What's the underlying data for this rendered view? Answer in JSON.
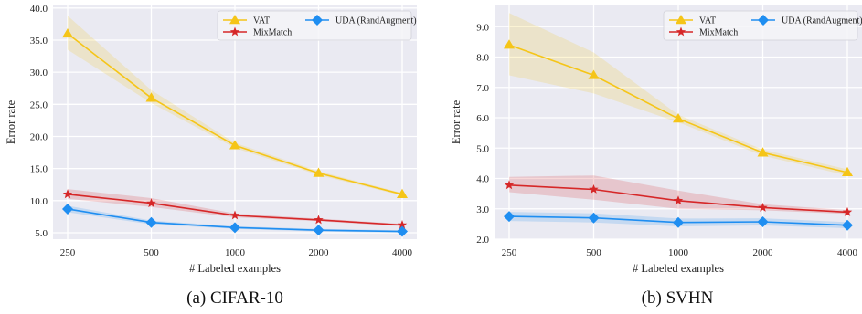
{
  "chart_data": [
    {
      "type": "line",
      "caption": "(a) CIFAR-10",
      "xlabel": "# Labeled examples",
      "ylabel": "Error rate",
      "x": [
        250,
        500,
        1000,
        2000,
        4000
      ],
      "x_tick_labels": [
        "250",
        "500",
        "1000",
        "2000",
        "4000"
      ],
      "x_scale": "log",
      "ylim": [
        4.0,
        40.4
      ],
      "y_ticks": [
        5.0,
        10.0,
        15.0,
        20.0,
        25.0,
        30.0,
        35.0,
        40.0
      ],
      "y_tick_labels": [
        "5.0",
        "10.0",
        "15.0",
        "20.0",
        "25.0",
        "30.0",
        "35.0",
        "40.0"
      ],
      "grid": true,
      "legend_position": "top-right",
      "series": [
        {
          "name": "VAT",
          "color": "#f5c518",
          "marker": "triangle",
          "values": [
            36.0,
            26.0,
            18.6,
            14.3,
            11.0
          ],
          "lower": [
            33.5,
            25.2,
            18.2,
            14.0,
            10.8
          ],
          "upper": [
            38.8,
            27.2,
            19.0,
            14.6,
            11.2
          ]
        },
        {
          "name": "MixMatch",
          "color": "#d62728",
          "marker": "star",
          "values": [
            11.0,
            9.6,
            7.7,
            7.0,
            6.2
          ],
          "lower": [
            10.3,
            9.0,
            7.4,
            6.8,
            6.0
          ],
          "upper": [
            11.8,
            10.4,
            8.0,
            7.2,
            6.4
          ]
        },
        {
          "name": "UDA (RandAugment)",
          "color": "#1f8ef1",
          "marker": "diamond",
          "values": [
            8.7,
            6.6,
            5.8,
            5.4,
            5.2
          ],
          "lower": [
            8.2,
            6.3,
            5.6,
            5.2,
            5.0
          ],
          "upper": [
            9.2,
            6.9,
            6.0,
            5.6,
            5.4
          ]
        }
      ]
    },
    {
      "type": "line",
      "caption": "(b) SVHN",
      "xlabel": "# Labeled examples",
      "ylabel": "Error rate",
      "x": [
        250,
        500,
        1000,
        2000,
        4000
      ],
      "x_tick_labels": [
        "250",
        "500",
        "1000",
        "2000",
        "4000"
      ],
      "x_scale": "log",
      "ylim": [
        2.0,
        9.7
      ],
      "y_ticks": [
        2.0,
        3.0,
        4.0,
        5.0,
        6.0,
        7.0,
        8.0,
        9.0
      ],
      "y_tick_labels": [
        "2.0",
        "3.0",
        "4.0",
        "5.0",
        "6.0",
        "7.0",
        "8.0",
        "9.0"
      ],
      "grid": true,
      "legend_position": "top-right",
      "series": [
        {
          "name": "VAT",
          "color": "#f5c518",
          "marker": "triangle",
          "values": [
            8.4,
            7.4,
            5.97,
            4.85,
            4.2
          ],
          "lower": [
            7.4,
            6.8,
            5.85,
            4.75,
            4.1
          ],
          "upper": [
            9.45,
            8.15,
            6.1,
            4.95,
            4.3
          ]
        },
        {
          "name": "MixMatch",
          "color": "#d62728",
          "marker": "star",
          "values": [
            3.78,
            3.64,
            3.27,
            3.04,
            2.89
          ],
          "lower": [
            3.55,
            3.3,
            3.0,
            2.95,
            2.83
          ],
          "upper": [
            4.05,
            4.1,
            3.6,
            3.15,
            2.96
          ]
        },
        {
          "name": "UDA (RandAugment)",
          "color": "#1f8ef1",
          "marker": "diamond",
          "values": [
            2.75,
            2.7,
            2.55,
            2.57,
            2.46
          ],
          "lower": [
            2.6,
            2.55,
            2.42,
            2.45,
            2.36
          ],
          "upper": [
            2.9,
            2.85,
            2.68,
            2.69,
            2.56
          ]
        }
      ]
    }
  ]
}
